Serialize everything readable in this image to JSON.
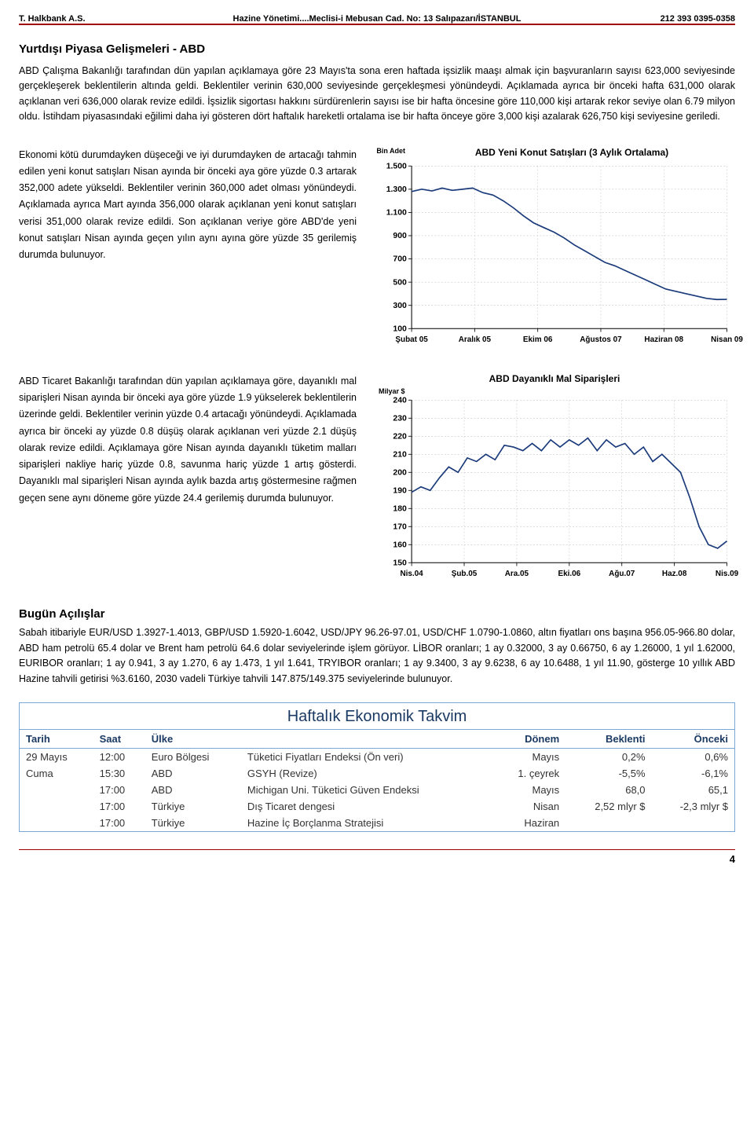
{
  "header": {
    "company": "T. Halkbank A.S.",
    "center": "Hazine Yönetimi....Meclisi-i Mebusan Cad. No: 13 Salıpazarı/İSTANBUL",
    "phone": "212 393 0395-0358"
  },
  "section1": {
    "title": "Yurtdışı Piyasa Gelişmeleri - ABD",
    "para": "ABD Çalışma Bakanlığı tarafından dün yapılan açıklamaya göre 23 Mayıs'ta sona eren haftada işsizlik maaşı almak için başvuranların sayısı 623,000 seviyesinde gerçekleşerek beklentilerin altında geldi. Beklentiler verinin 630,000 seviyesinde gerçekleşmesi yönündeydi. Açıklamada ayrıca bir önceki hafta 631,000 olarak açıklanan veri 636,000 olarak revize edildi. İşsizlik sigortası hakkını sürdürenlerin sayısı ise bir hafta öncesine göre 110,000 kişi artarak rekor seviye olan 6.79 milyon oldu. İstihdam piyasasındaki eğilimi daha iyi gösteren dört haftalık hareketli ortalama ise bir hafta önceye göre 3,000 kişi azalarak 626,750 kişi seviyesine geriledi."
  },
  "section2": {
    "text": "Ekonomi kötü durumdayken düşeceği ve iyi durumdayken de artacağı tahmin edilen yeni konut satışları Nisan ayında bir önceki aya göre yüzde 0.3 artarak 352,000 adete yükseldi. Beklentiler verinin 360,000 adet olması yönündeydi. Açıklamada ayrıca Mart ayında 356,000 olarak açıklanan yeni konut satışları verisi 351,000 olarak revize edildi. Son açıklanan veriye göre ABD'de yeni konut satışları Nisan ayında geçen yılın aynı ayına göre yüzde 35 gerilemiş durumda bulunuyor."
  },
  "chart1": {
    "unit_label": "Bin Adet",
    "title": "ABD Yeni Konut Satışları (3 Aylık Ortalama)",
    "type": "line",
    "ymin": 100,
    "ymax": 1500,
    "ystep": 200,
    "yticks": [
      "1.500",
      "1.300",
      "1.100",
      "900",
      "700",
      "500",
      "300",
      "100"
    ],
    "xticks": [
      "Şubat 05",
      "Aralık 05",
      "Ekim 06",
      "Ağustos 07",
      "Haziran 08",
      "Nisan 09"
    ],
    "line_color": "#1a3a7a",
    "grid_color": "#c8c8c8",
    "background_color": "#ffffff",
    "points_y": [
      1280,
      1300,
      1285,
      1310,
      1290,
      1300,
      1310,
      1270,
      1250,
      1200,
      1140,
      1070,
      1010,
      970,
      930,
      880,
      820,
      770,
      720,
      670,
      640,
      600,
      560,
      520,
      480,
      440,
      420,
      400,
      380,
      360,
      350,
      352
    ]
  },
  "section3": {
    "text": "ABD Ticaret Bakanlığı tarafından dün yapılan açıklamaya göre, dayanıklı mal siparişleri Nisan ayında bir önceki aya göre yüzde 1.9 yükselerek beklentilerin üzerinde geldi. Beklentiler verinin yüzde 0.4 artacağı yönündeydi. Açıklamada ayrıca bir önceki ay yüzde 0.8 düşüş olarak açıklanan veri yüzde 2.1 düşüş olarak revize edildi. Açıklamaya göre Nisan ayında dayanıklı tüketim malları siparişleri nakliye hariç yüzde 0.8, savunma hariç yüzde 1 artış gösterdi. Dayanıklı mal siparişleri Nisan ayında aylık bazda artış göstermesine rağmen geçen sene aynı döneme göre yüzde 24.4 gerilemiş durumda bulunuyor."
  },
  "chart2": {
    "unit_label": "Milyar $",
    "title": "ABD Dayanıklı Mal Siparişleri",
    "type": "line",
    "ymin": 150,
    "ymax": 240,
    "ystep": 10,
    "yticks": [
      "240",
      "230",
      "220",
      "210",
      "200",
      "190",
      "180",
      "170",
      "160",
      "150"
    ],
    "xticks": [
      "Nis.04",
      "Şub.05",
      "Ara.05",
      "Eki.06",
      "Ağu.07",
      "Haz.08",
      "Nis.09"
    ],
    "line_color": "#1a3a7a",
    "grid_color": "#c8c8c8",
    "background_color": "#ffffff",
    "points_y": [
      189,
      192,
      190,
      197,
      203,
      200,
      208,
      206,
      210,
      207,
      215,
      214,
      212,
      216,
      212,
      218,
      214,
      218,
      215,
      219,
      212,
      218,
      214,
      216,
      210,
      214,
      206,
      210,
      205,
      200,
      186,
      170,
      160,
      158,
      162
    ]
  },
  "section4": {
    "title": "Bugün Açılışlar",
    "text": "Sabah itibariyle EUR/USD 1.3927-1.4013, GBP/USD 1.5920-1.6042, USD/JPY 96.26-97.01, USD/CHF 1.0790-1.0860, altın fiyatları ons başına 956.05-966.80 dolar, ABD ham petrolü 65.4 dolar ve Brent ham petrolü 64.6 dolar seviyelerinde işlem görüyor. LİBOR oranları; 1 ay 0.32000, 3 ay 0.66750, 6 ay 1.26000, 1 yıl 1.62000, EURIBOR oranları; 1 ay 0.941, 3 ay 1.270, 6 ay 1.473, 1 yıl 1.641, TRYIBOR oranları; 1 ay 9.3400, 3 ay 9.6238, 6 ay 10.6488, 1 yıl 11.90, gösterge 10 yıllık ABD Hazine tahvili getirisi %3.6160, 2030 vadeli Türkiye tahvili 147.875/149.375 seviyelerinde bulunuyor."
  },
  "calendar": {
    "title": "Haftalık Ekonomik Takvim",
    "columns": [
      "Tarih",
      "Saat",
      "Ülke",
      "",
      "Dönem",
      "Beklenti",
      "Önceki"
    ],
    "rows": [
      [
        "29 Mayıs",
        "12:00",
        "Euro Bölgesi",
        "Tüketici Fiyatları Endeksi (Ön veri)",
        "Mayıs",
        "0,2%",
        "0,6%"
      ],
      [
        "Cuma",
        "15:30",
        "ABD",
        "GSYH (Revize)",
        "1. çeyrek",
        "-5,5%",
        "-6,1%"
      ],
      [
        "",
        "17:00",
        "ABD",
        "Michigan Uni. Tüketici Güven Endeksi",
        "Mayıs",
        "68,0",
        "65,1"
      ],
      [
        "",
        "17:00",
        "Türkiye",
        "Dış Ticaret dengesi",
        "Nisan",
        "2,52 mlyr $",
        "-2,3 mlyr $"
      ],
      [
        "",
        "17:00",
        "Türkiye",
        "Hazine İç Borçlanma Stratejisi",
        "Haziran",
        "",
        ""
      ]
    ]
  },
  "page_number": "4"
}
